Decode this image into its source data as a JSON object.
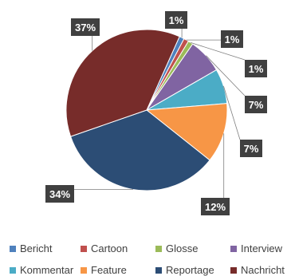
{
  "chart_data": {
    "type": "pie",
    "title": "",
    "categories": [
      "Bericht",
      "Cartoon",
      "Glosse",
      "Interview",
      "Kommentar",
      "Feature",
      "Reportage",
      "Nachricht"
    ],
    "values": [
      1,
      1,
      1,
      7,
      7,
      12,
      34,
      37
    ],
    "labels": [
      "1%",
      "1%",
      "1%",
      "7%",
      "7%",
      "12%",
      "34%",
      "37%"
    ],
    "colors": [
      "#4f81bd",
      "#c0504d",
      "#9bbb59",
      "#8064a2",
      "#4bacc6",
      "#f79646",
      "#2c4d75",
      "#772c2a"
    ],
    "legend_position": "bottom"
  }
}
